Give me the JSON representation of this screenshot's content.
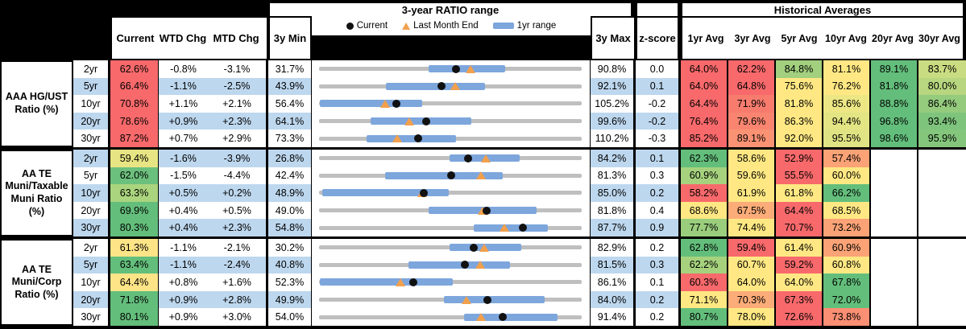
{
  "header": {
    "chart_group_title": "3-year RATIO range",
    "historical_group_title": "Historical Averages",
    "columns": {
      "current": "Current",
      "wtd": "WTD Chg",
      "mtd": "MTD Chg",
      "min": "3y Min",
      "max": "3y Max",
      "zscore": "z-score"
    },
    "avg_columns": [
      "1yr Avg",
      "3yr Avg",
      "5yr Avg",
      "10yr Avg",
      "20yr Avg",
      "30yr Avg"
    ],
    "legend": [
      {
        "marker": "current-dot",
        "label": "Current"
      },
      {
        "marker": "last-month-end-triangle",
        "label": "Last Month End"
      },
      {
        "marker": "1yr-range-bar",
        "label": "1yr range"
      }
    ]
  },
  "colors": {
    "stripe_blue": "#BDD7EE",
    "range_bar_blue": "#7DA6DC",
    "range_line_gray": "#BFBFBF",
    "current_dot_black": "#111111",
    "last_month_triangle_orange": "#F2A04D",
    "heat_red": "#F8696B",
    "heat_orange": "#FBA376",
    "heat_yellow": "#FFE883",
    "heat_yellowgreen": "#A6D27E",
    "heat_green": "#63BE7B"
  },
  "chart_data": {
    "type": "table",
    "title": "3-year RATIO range",
    "note": "Each row: dot=Current, triangle=Last Month End (current minus MTD chg), blue bar=1yr range, gray line spans 3y Min to 3y Max",
    "sections": [
      {
        "label": "AAA HG/UST Ratio (%)",
        "rows": [
          {
            "tenor": "2yr",
            "current": 62.6,
            "current_color": "#F8696B",
            "wtd": "-0.8%",
            "mtd": "-3.1%",
            "min": 31.7,
            "max": 90.8,
            "bar_1yr": [
              56.3,
              73.5
            ],
            "zscore": "0.0",
            "avgs": [
              [
                "64.0%",
                "#F8696B"
              ],
              [
                "62.2%",
                "#F8696B"
              ],
              [
                "84.8%",
                "#A2D07E"
              ],
              [
                "81.1%",
                "#FFE883"
              ],
              [
                "89.1%",
                "#63BE7B"
              ],
              [
                "83.7%",
                "#C9DC81"
              ]
            ]
          },
          {
            "tenor": "5yr",
            "current": 66.4,
            "current_color": "#F8696B",
            "wtd": "-1.1%",
            "mtd": "-2.5%",
            "min": 43.9,
            "max": 92.1,
            "bar_1yr": [
              56.1,
              74.4
            ],
            "zscore": "0.1",
            "avgs": [
              [
                "64.0%",
                "#F8696B"
              ],
              [
                "64.8%",
                "#F8696B"
              ],
              [
                "75.6%",
                "#FFE883"
              ],
              [
                "76.2%",
                "#FFE883"
              ],
              [
                "81.8%",
                "#63BE7B"
              ],
              [
                "80.0%",
                "#B7D67F"
              ]
            ]
          },
          {
            "tenor": "10yr",
            "current": 70.8,
            "current_color": "#F8696B",
            "wtd": "+1.1%",
            "mtd": "+2.1%",
            "min": 56.4,
            "max": 105.2,
            "bar_1yr": [
              56.5,
              75.5
            ],
            "zscore": "-0.2",
            "avgs": [
              [
                "64.4%",
                "#F8696B"
              ],
              [
                "71.9%",
                "#F87C6E"
              ],
              [
                "81.8%",
                "#FFE883"
              ],
              [
                "85.6%",
                "#ECE784"
              ],
              [
                "88.8%",
                "#63BE7B"
              ],
              [
                "86.4%",
                "#94CB7D"
              ]
            ]
          },
          {
            "tenor": "20yr",
            "current": 78.6,
            "current_color": "#F8696B",
            "wtd": "+0.9%",
            "mtd": "+2.3%",
            "min": 64.1,
            "max": 99.6,
            "bar_1yr": [
              71.1,
              84.7
            ],
            "zscore": "-0.2",
            "avgs": [
              [
                "76.4%",
                "#F8696B"
              ],
              [
                "79.6%",
                "#F98570"
              ],
              [
                "86.3%",
                "#FFE883"
              ],
              [
                "94.4%",
                "#E3E483"
              ],
              [
                "96.8%",
                "#63BE7B"
              ],
              [
                "93.4%",
                "#7EC47C"
              ]
            ]
          },
          {
            "tenor": "30yr",
            "current": 87.2,
            "current_color": "#F8696B",
            "wtd": "+0.7%",
            "mtd": "+2.9%",
            "min": 73.3,
            "max": 110.2,
            "bar_1yr": [
              80.0,
              92.5
            ],
            "zscore": "-0.3",
            "avgs": [
              [
                "85.2%",
                "#F8696B"
              ],
              [
                "89.1%",
                "#FA9274"
              ],
              [
                "92.0%",
                "#FFE883"
              ],
              [
                "95.5%",
                "#E0E383"
              ],
              [
                "98.6%",
                "#63BE7B"
              ],
              [
                "95.9%",
                "#85C67D"
              ]
            ]
          }
        ]
      },
      {
        "label": "AA TE Muni/Taxable Muni Ratio (%)",
        "rows": [
          {
            "tenor": "2yr",
            "current": 59.4,
            "current_color": "#E7E583",
            "wtd": "-1.6%",
            "mtd": "-3.9%",
            "min": 26.8,
            "max": 84.2,
            "bar_1yr": [
              55.4,
              70.6
            ],
            "zscore": "0.1",
            "avgs": [
              [
                "62.3%",
                "#63BE7B"
              ],
              [
                "58.6%",
                "#FFE883"
              ],
              [
                "52.9%",
                "#F8696B"
              ],
              [
                "57.4%",
                "#FBA376"
              ],
              null,
              null
            ]
          },
          {
            "tenor": "5yr",
            "current": 62.0,
            "current_color": "#6CC07D",
            "wtd": "-1.5%",
            "mtd": "-4.4%",
            "min": 42.4,
            "max": 81.3,
            "bar_1yr": [
              52.2,
              69.6
            ],
            "zscore": "0.3",
            "avgs": [
              [
                "60.9%",
                "#A6D27E"
              ],
              [
                "59.6%",
                "#FFE883"
              ],
              [
                "55.5%",
                "#F8696B"
              ],
              [
                "60.0%",
                "#FFE883"
              ],
              null,
              null
            ]
          },
          {
            "tenor": "10yr",
            "current": 63.3,
            "current_color": "#AAD47E",
            "wtd": "+0.5%",
            "mtd": "+0.2%",
            "min": 48.9,
            "max": 85.0,
            "bar_1yr": [
              49.3,
              66.7
            ],
            "zscore": "0.2",
            "avgs": [
              [
                "58.2%",
                "#F8696B"
              ],
              [
                "61.9%",
                "#FFE883"
              ],
              [
                "61.8%",
                "#FFE883"
              ],
              [
                "66.2%",
                "#63BE7B"
              ],
              null,
              null
            ]
          },
          {
            "tenor": "20yr",
            "current": 69.9,
            "current_color": "#63BE7B",
            "wtd": "+0.4%",
            "mtd": "+0.5%",
            "min": 49.0,
            "max": 81.8,
            "bar_1yr": [
              62.7,
              76.2
            ],
            "zscore": "0.4",
            "avgs": [
              [
                "68.6%",
                "#FFE883"
              ],
              [
                "67.5%",
                "#FCAC78"
              ],
              [
                "64.4%",
                "#F8696B"
              ],
              [
                "68.5%",
                "#FFE883"
              ],
              null,
              null
            ]
          },
          {
            "tenor": "30yr",
            "current": 80.3,
            "current_color": "#63BE7B",
            "wtd": "+0.4%",
            "mtd": "+2.3%",
            "min": 54.8,
            "max": 87.7,
            "bar_1yr": [
              74.2,
              83.5
            ],
            "zscore": "0.9",
            "avgs": [
              [
                "77.7%",
                "#9ACE7D"
              ],
              [
                "74.4%",
                "#FFE883"
              ],
              [
                "70.7%",
                "#F8696B"
              ],
              [
                "73.2%",
                "#FBA376"
              ],
              null,
              null
            ]
          }
        ]
      },
      {
        "label": "AA TE Muni/Corp Ratio (%)",
        "rows": [
          {
            "tenor": "2yr",
            "current": 61.3,
            "current_color": "#FCE487",
            "wtd": "-1.1%",
            "mtd": "-2.1%",
            "min": 30.2,
            "max": 82.9,
            "bar_1yr": [
              56.4,
              70.7
            ],
            "zscore": "0.2",
            "avgs": [
              [
                "62.8%",
                "#63BE7B"
              ],
              [
                "59.4%",
                "#F8696B"
              ],
              [
                "61.4%",
                "#FFE883"
              ],
              [
                "60.9%",
                "#FBA376"
              ],
              null,
              null
            ]
          },
          {
            "tenor": "5yr",
            "current": 63.4,
            "current_color": "#63BE7B",
            "wtd": "-1.1%",
            "mtd": "-2.4%",
            "min": 40.8,
            "max": 81.5,
            "bar_1yr": [
              54.6,
              70.4
            ],
            "zscore": "0.3",
            "avgs": [
              [
                "62.2%",
                "#A6D27E"
              ],
              [
                "60.7%",
                "#FFE883"
              ],
              [
                "59.2%",
                "#F8696B"
              ],
              [
                "60.8%",
                "#FFE883"
              ],
              null,
              null
            ]
          },
          {
            "tenor": "10yr",
            "current": 64.4,
            "current_color": "#FCE487",
            "wtd": "+0.8%",
            "mtd": "+1.6%",
            "min": 52.3,
            "max": 86.1,
            "bar_1yr": [
              52.4,
              69.5
            ],
            "zscore": "0.1",
            "avgs": [
              [
                "60.3%",
                "#F8696B"
              ],
              [
                "64.0%",
                "#FFE883"
              ],
              [
                "64.0%",
                "#FFE883"
              ],
              [
                "67.8%",
                "#63BE7B"
              ],
              null,
              null
            ]
          },
          {
            "tenor": "20yr",
            "current": 71.8,
            "current_color": "#63BE7B",
            "wtd": "+0.9%",
            "mtd": "+2.8%",
            "min": 49.9,
            "max": 84.0,
            "bar_1yr": [
              66.1,
              79.2
            ],
            "zscore": "0.2",
            "avgs": [
              [
                "71.1%",
                "#FFE883"
              ],
              [
                "70.3%",
                "#FCAC78"
              ],
              [
                "67.3%",
                "#F8696B"
              ],
              [
                "72.0%",
                "#63BE7B"
              ],
              null,
              null
            ]
          },
          {
            "tenor": "30yr",
            "current": 80.1,
            "current_color": "#63BE7B",
            "wtd": "+0.9%",
            "mtd": "+3.0%",
            "min": 54.0,
            "max": 91.4,
            "bar_1yr": [
              74.7,
              88.0
            ],
            "zscore": "0.2",
            "avgs": [
              [
                "80.7%",
                "#63BE7B"
              ],
              [
                "78.0%",
                "#FFE883"
              ],
              [
                "72.6%",
                "#F8696B"
              ],
              [
                "73.8%",
                "#FA8F73"
              ],
              null,
              null
            ]
          }
        ]
      }
    ]
  }
}
